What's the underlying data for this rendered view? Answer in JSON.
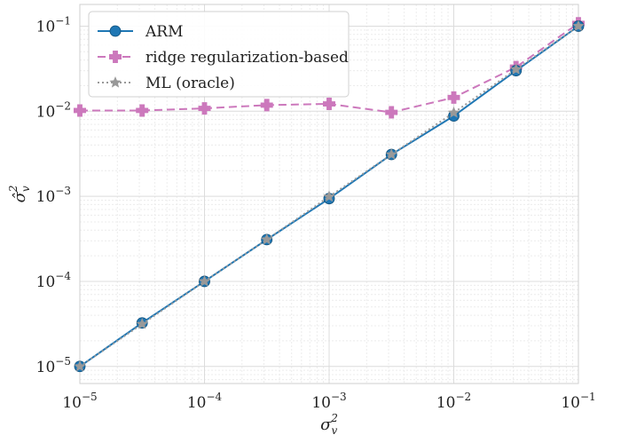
{
  "chart_data": {
    "type": "line",
    "x_scale": "log",
    "y_scale": "log",
    "xlim": [
      1e-05,
      0.1
    ],
    "ylim": [
      6.3e-06,
      0.18
    ],
    "grid": true,
    "legend_position": "top-left",
    "xlabel": "σ_v^2",
    "ylabel": "σ̂_v^2",
    "x": [
      1e-05,
      3.16e-05,
      0.0001,
      0.000316,
      0.001,
      0.00316,
      0.01,
      0.0316,
      0.1
    ],
    "x_ticks": [
      {
        "value": 1e-05,
        "base": "10",
        "exp": "−5"
      },
      {
        "value": 0.0001,
        "base": "10",
        "exp": "−4"
      },
      {
        "value": 0.001,
        "base": "10",
        "exp": "−3"
      },
      {
        "value": 0.01,
        "base": "10",
        "exp": "−2"
      },
      {
        "value": 0.1,
        "base": "10",
        "exp": "−1"
      }
    ],
    "y_ticks": [
      {
        "value": 1e-05,
        "base": "10",
        "exp": "−5"
      },
      {
        "value": 0.0001,
        "base": "10",
        "exp": "−4"
      },
      {
        "value": 0.001,
        "base": "10",
        "exp": "−3"
      },
      {
        "value": 0.01,
        "base": "10",
        "exp": "−2"
      },
      {
        "value": 0.1,
        "base": "10",
        "exp": "−1"
      }
    ],
    "series": [
      {
        "name": "ARM",
        "color": "#1f77b4",
        "line_style": "solid",
        "marker": "circle",
        "values": [
          1e-05,
          3.25e-05,
          0.0001,
          0.00031,
          0.00094,
          0.0031,
          0.0088,
          0.03,
          0.1
        ]
      },
      {
        "name": "ridge regularization-based",
        "color": "#cc78bc",
        "line_style": "dashed",
        "marker": "plus",
        "values": [
          0.0102,
          0.0102,
          0.0108,
          0.0118,
          0.0122,
          0.0097,
          0.0145,
          0.033,
          0.108
        ]
      },
      {
        "name": "ML (oracle)",
        "color": "#999999",
        "line_style": "dotted",
        "marker": "star",
        "values": [
          1e-05,
          3.15e-05,
          0.0001,
          0.00031,
          0.00099,
          0.0031,
          0.0096,
          0.031,
          0.1
        ]
      }
    ]
  }
}
